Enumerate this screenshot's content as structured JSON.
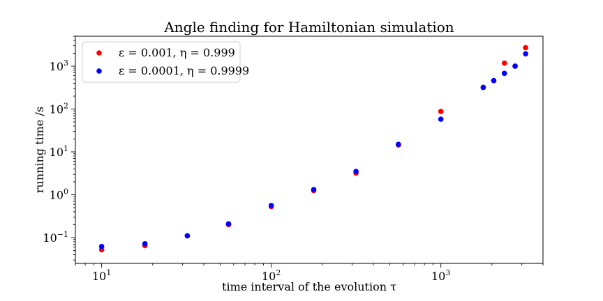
{
  "chart_data": {
    "type": "scatter",
    "title": "Angle finding for Hamiltonian simulation",
    "xlabel": "time interval of the evolution τ",
    "ylabel": "running time /s",
    "xscale": "log",
    "yscale": "log",
    "xlim": [
      7,
      4000
    ],
    "ylim": [
      0.025,
      5000
    ],
    "grid": false,
    "legend_loc": "top-left",
    "x_ticks": [
      {
        "value": 10,
        "base": "10",
        "exp": "1"
      },
      {
        "value": 100,
        "base": "10",
        "exp": "2"
      },
      {
        "value": 1000,
        "base": "10",
        "exp": "3"
      }
    ],
    "y_ticks": [
      {
        "value": 0.1,
        "base": "10",
        "exp": "−1"
      },
      {
        "value": 1,
        "base": "10",
        "exp": "0"
      },
      {
        "value": 10,
        "base": "10",
        "exp": "1"
      },
      {
        "value": 100,
        "base": "10",
        "exp": "2"
      },
      {
        "value": 1000,
        "base": "10",
        "exp": "3"
      }
    ],
    "series": [
      {
        "name": "ε = 0.001, η = 0.999",
        "color": "#ff0000",
        "x": [
          10,
          18,
          32,
          56,
          100,
          178,
          316,
          562,
          1000,
          1778,
          2050,
          2370,
          2740,
          3160
        ],
        "y": [
          0.052,
          0.065,
          0.11,
          0.2,
          0.53,
          1.25,
          3.2,
          14.5,
          88,
          320,
          460,
          1180,
          1000,
          2700
        ]
      },
      {
        "name": "ε = 0.0001, η = 0.9999",
        "color": "#0000ff",
        "x": [
          10,
          18,
          32,
          56,
          100,
          178,
          316,
          562,
          1000,
          1778,
          2050,
          2370,
          2740,
          3160
        ],
        "y": [
          0.062,
          0.072,
          0.11,
          0.21,
          0.56,
          1.32,
          3.5,
          15,
          58,
          320,
          460,
          680,
          1000,
          1950
        ]
      }
    ]
  }
}
